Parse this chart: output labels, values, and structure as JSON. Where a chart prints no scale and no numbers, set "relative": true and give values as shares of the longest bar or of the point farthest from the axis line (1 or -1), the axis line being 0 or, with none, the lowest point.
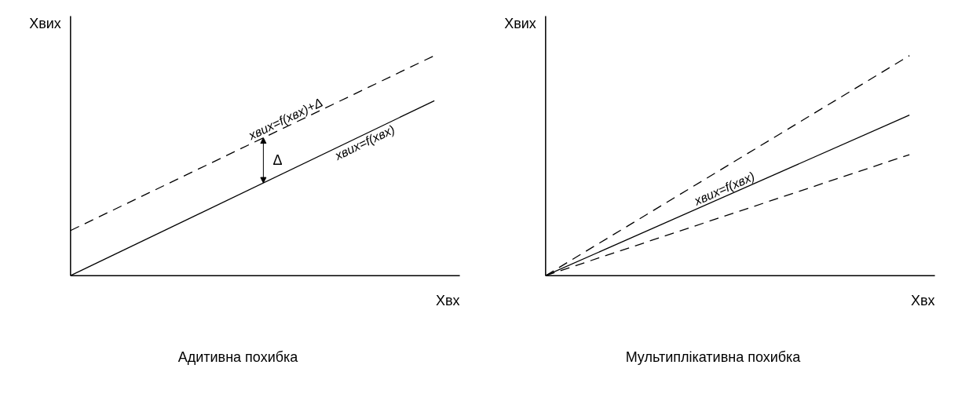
{
  "chart_data": [
    {
      "type": "line",
      "title": "Адитивна похибка",
      "xlabel": "Хвх",
      "ylabel": "Хвих",
      "relative": true,
      "categories": [
        null,
        null
      ],
      "legend": false,
      "series": [
        {
          "name": "xвих=f(xвх)+Δ",
          "color": "#000000",
          "line_style": "dashed",
          "values": [
            0.205,
            1
          ]
        },
        {
          "name": "xвих=f(xвх)",
          "color": "#000000",
          "line_style": "solid",
          "values": [
            0,
            0.795
          ]
        }
      ],
      "annotations": [
        "Δ"
      ]
    },
    {
      "type": "line",
      "title": "Мультиплікативна похибка",
      "xlabel": "Хвх",
      "ylabel": "Хвих",
      "relative": true,
      "categories": [
        null,
        null
      ],
      "legend": false,
      "series": [
        {
          "color": "#000000",
          "line_style": "dashed",
          "values": [
            0,
            1
          ]
        },
        {
          "name": "xвих=f(xвх)",
          "color": "#000000",
          "line_style": "solid",
          "values": [
            0,
            0.73
          ]
        },
        {
          "color": "#000000",
          "line_style": "dashed",
          "values": [
            0,
            0.55
          ]
        }
      ]
    }
  ]
}
